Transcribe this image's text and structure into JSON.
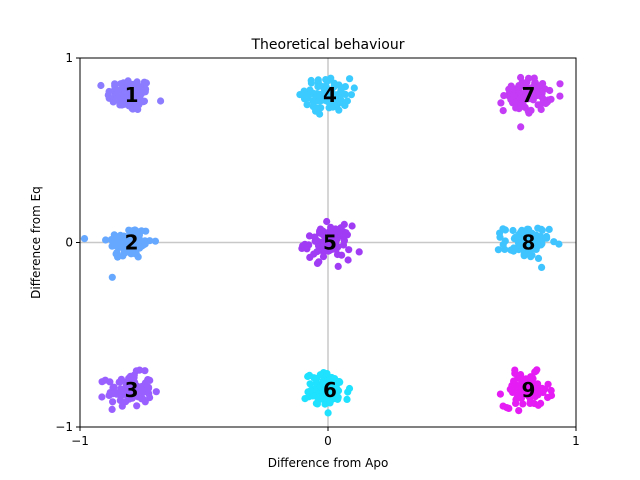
{
  "chart_data": {
    "type": "scatter",
    "title": "Theoretical behaviour",
    "xlabel": "Difference from Apo",
    "ylabel": "Difference from Eq",
    "xlim": [
      -1,
      1
    ],
    "ylim": [
      -1,
      1
    ],
    "xticks": [
      -1,
      0,
      1
    ],
    "yticks": [
      -1,
      0,
      1
    ],
    "xtick_labels": [
      "−1",
      "0",
      "1"
    ],
    "ytick_labels": [
      "−1",
      "0",
      "1"
    ],
    "reference_lines": [
      {
        "axis": "x",
        "value": 0
      },
      {
        "axis": "y",
        "value": 0
      }
    ],
    "grid": false,
    "legend": "none",
    "series": [
      {
        "label": "1",
        "center": [
          -0.8,
          0.8
        ],
        "color": "#8c7cff",
        "spread": 0.045,
        "count": 90
      },
      {
        "label": "2",
        "center": [
          -0.8,
          0.0
        ],
        "color": "#66a8ff",
        "spread": 0.045,
        "count": 90
      },
      {
        "label": "3",
        "center": [
          -0.8,
          -0.8
        ],
        "color": "#9a60ff",
        "spread": 0.045,
        "count": 90
      },
      {
        "label": "4",
        "center": [
          0.0,
          0.8
        ],
        "color": "#3ccbff",
        "spread": 0.045,
        "count": 90
      },
      {
        "label": "5",
        "center": [
          0.0,
          0.0
        ],
        "color": "#a13cf5",
        "spread": 0.045,
        "count": 90
      },
      {
        "label": "6",
        "center": [
          0.0,
          -0.8
        ],
        "color": "#1ee2ff",
        "spread": 0.045,
        "count": 90
      },
      {
        "label": "7",
        "center": [
          0.8,
          0.8
        ],
        "color": "#c43cf5",
        "spread": 0.045,
        "count": 90
      },
      {
        "label": "8",
        "center": [
          0.8,
          0.0
        ],
        "color": "#40c4ff",
        "spread": 0.045,
        "count": 90
      },
      {
        "label": "9",
        "center": [
          0.8,
          -0.8
        ],
        "color": "#e61cf5",
        "spread": 0.045,
        "count": 90
      }
    ]
  }
}
